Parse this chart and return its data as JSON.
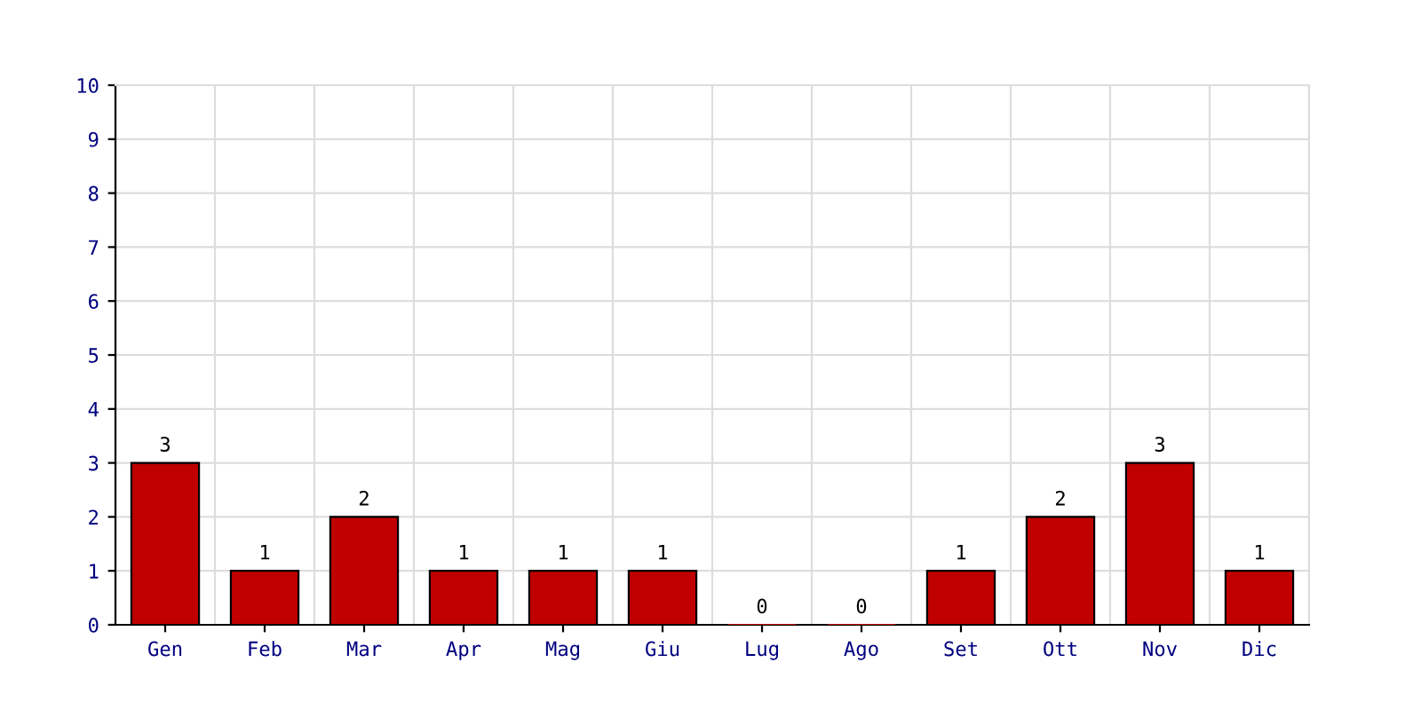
{
  "chart_data": {
    "type": "bar",
    "categories": [
      "Gen",
      "Feb",
      "Mar",
      "Apr",
      "Mag",
      "Giu",
      "Lug",
      "Ago",
      "Set",
      "Ott",
      "Nov",
      "Dic"
    ],
    "values": [
      3,
      1,
      2,
      1,
      1,
      1,
      0,
      0,
      1,
      2,
      3,
      1
    ],
    "color": "#c00000",
    "ylim": [
      0,
      10
    ],
    "yticks": [
      0,
      1,
      2,
      3,
      4,
      5,
      6,
      7,
      8,
      9,
      10
    ],
    "grid": true,
    "data_labels": true
  }
}
